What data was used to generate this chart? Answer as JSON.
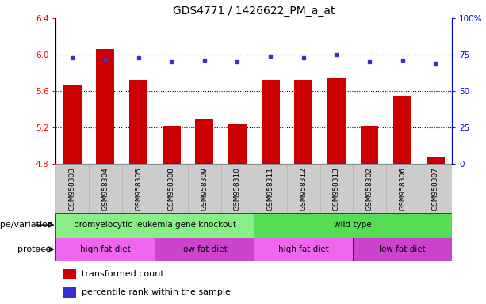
{
  "title": "GDS4771 / 1426622_PM_a_at",
  "samples": [
    "GSM958303",
    "GSM958304",
    "GSM958305",
    "GSM958308",
    "GSM958309",
    "GSM958310",
    "GSM958311",
    "GSM958312",
    "GSM958313",
    "GSM958302",
    "GSM958306",
    "GSM958307"
  ],
  "bar_values": [
    5.67,
    6.06,
    5.72,
    5.22,
    5.3,
    5.25,
    5.72,
    5.72,
    5.74,
    5.22,
    5.55,
    4.88
  ],
  "dot_values": [
    73,
    72,
    73,
    70,
    71,
    70,
    74,
    73,
    75,
    70,
    71,
    69
  ],
  "ylim_left": [
    4.8,
    6.4
  ],
  "ylim_right": [
    0,
    100
  ],
  "yticks_left": [
    4.8,
    5.2,
    5.6,
    6.0,
    6.4
  ],
  "yticks_right": [
    0,
    25,
    50,
    75,
    100
  ],
  "hlines": [
    5.2,
    5.6,
    6.0
  ],
  "bar_color": "#cc0000",
  "dot_color": "#3333cc",
  "bar_width": 0.55,
  "genotype_groups": [
    {
      "label": "promyelocytic leukemia gene knockout",
      "start": 0,
      "end": 6,
      "color": "#88ee88"
    },
    {
      "label": "wild type",
      "start": 6,
      "end": 12,
      "color": "#55dd55"
    }
  ],
  "protocol_groups": [
    {
      "label": "high fat diet",
      "start": 0,
      "end": 3,
      "color": "#ee66ee"
    },
    {
      "label": "low fat diet",
      "start": 3,
      "end": 6,
      "color": "#cc44cc"
    },
    {
      "label": "high fat diet",
      "start": 6,
      "end": 9,
      "color": "#ee66ee"
    },
    {
      "label": "low fat diet",
      "start": 9,
      "end": 12,
      "color": "#cc44cc"
    }
  ],
  "legend_items": [
    {
      "label": "transformed count",
      "color": "#cc0000"
    },
    {
      "label": "percentile rank within the sample",
      "color": "#3333cc"
    }
  ],
  "genotype_label": "genotype/variation",
  "protocol_label": "protocol",
  "tick_bg_color": "#cccccc",
  "title_fontsize": 10,
  "axis_fontsize": 8,
  "label_fontsize": 8.5
}
